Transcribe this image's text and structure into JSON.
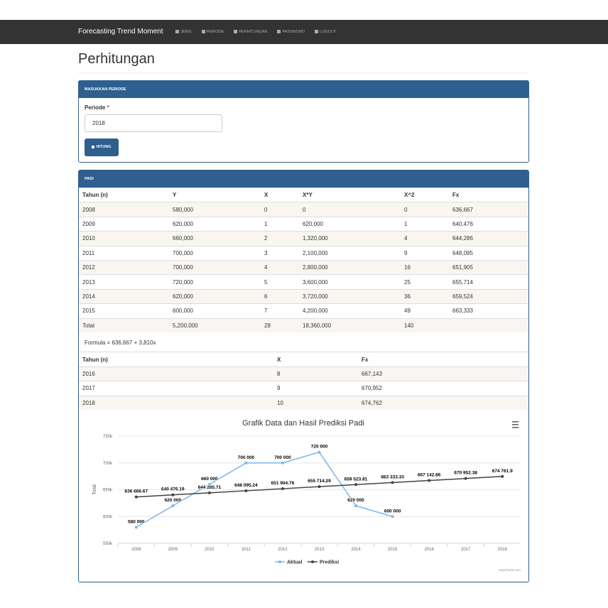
{
  "navbar": {
    "brand": "Forecasting Trend Moment",
    "menu": [
      "JENIS",
      "PERIODE",
      "PERHITUNGAN",
      "PASSWORD",
      "LOGOUT"
    ]
  },
  "page_title": "Perhitungan",
  "form": {
    "header": "MASUKKAN PERIODE",
    "label": "Periode",
    "required": "*",
    "value": "2018",
    "button": "HITUNG"
  },
  "result": {
    "header": "PADI",
    "table": {
      "columns": [
        "Tahun (n)",
        "Y",
        "X",
        "X*Y",
        "X^2",
        "Fx"
      ],
      "rows": [
        [
          "2008",
          "580,000",
          "0",
          "0",
          "0",
          "636,667"
        ],
        [
          "2009",
          "620,000",
          "1",
          "620,000",
          "1",
          "640,476"
        ],
        [
          "2010",
          "660,000",
          "2",
          "1,320,000",
          "4",
          "644,286"
        ],
        [
          "2011",
          "700,000",
          "3",
          "2,100,000",
          "9",
          "648,095"
        ],
        [
          "2012",
          "700,000",
          "4",
          "2,800,000",
          "16",
          "651,905"
        ],
        [
          "2013",
          "720,000",
          "5",
          "3,600,000",
          "25",
          "655,714"
        ],
        [
          "2014",
          "620,000",
          "6",
          "3,720,000",
          "36",
          "659,524"
        ],
        [
          "2015",
          "600,000",
          "7",
          "4,200,000",
          "49",
          "663,333"
        ],
        [
          "Total",
          "5,200,000",
          "28",
          "18,360,000",
          "140",
          null
        ]
      ]
    },
    "formula": "Formula = 636,667 + 3,810x",
    "forecast_table": {
      "columns": [
        "Tahun (n)",
        "X",
        "Fx"
      ],
      "rows": [
        [
          "2016",
          "8",
          "667,143"
        ],
        [
          "2017",
          "9",
          "670,952"
        ],
        [
          "2018",
          "10",
          "674,762"
        ]
      ]
    }
  },
  "chart": {
    "type": "line",
    "title": "Grafik Data dan Hasil Prediksi Padi",
    "y_label": "Total",
    "categories": [
      "2008",
      "2009",
      "2010",
      "2011",
      "2012",
      "2013",
      "2014",
      "2015",
      "2016",
      "2017",
      "2018"
    ],
    "ylim": [
      550000,
      750000
    ],
    "yticks": [
      {
        "value": 550000,
        "label": "550k"
      },
      {
        "value": 600000,
        "label": "600k"
      },
      {
        "value": 650000,
        "label": "650k"
      },
      {
        "value": 700000,
        "label": "700k"
      },
      {
        "value": 750000,
        "label": "750k"
      }
    ],
    "grid": true,
    "legend": "bottom",
    "series": [
      {
        "name": "Aktual",
        "color": "#7cb5ec",
        "values": [
          580000,
          620000,
          660000,
          700000,
          700000,
          720000,
          620000,
          600000,
          null,
          null,
          null
        ],
        "value_labels": [
          "580 000",
          "620 000",
          "660 000",
          "700 000",
          "700 000",
          "720 000",
          "620 000",
          "600 000",
          null,
          null,
          null
        ]
      },
      {
        "name": "Prediksi",
        "color": "#434348",
        "values": [
          636666.67,
          640476.19,
          644285.71,
          648095.24,
          651904.76,
          655714.29,
          659523.81,
          663333.33,
          667142.86,
          670952.38,
          674761.9
        ],
        "value_labels": [
          "636 666.67",
          "640 476.19",
          "644 285.71",
          "648 095.24",
          "651 904.76",
          "655 714.29",
          "659 523.81",
          "663 333.33",
          "667 142.86",
          "670 952.38",
          "674 761.9"
        ]
      }
    ],
    "credit": "Highcharts.com"
  }
}
